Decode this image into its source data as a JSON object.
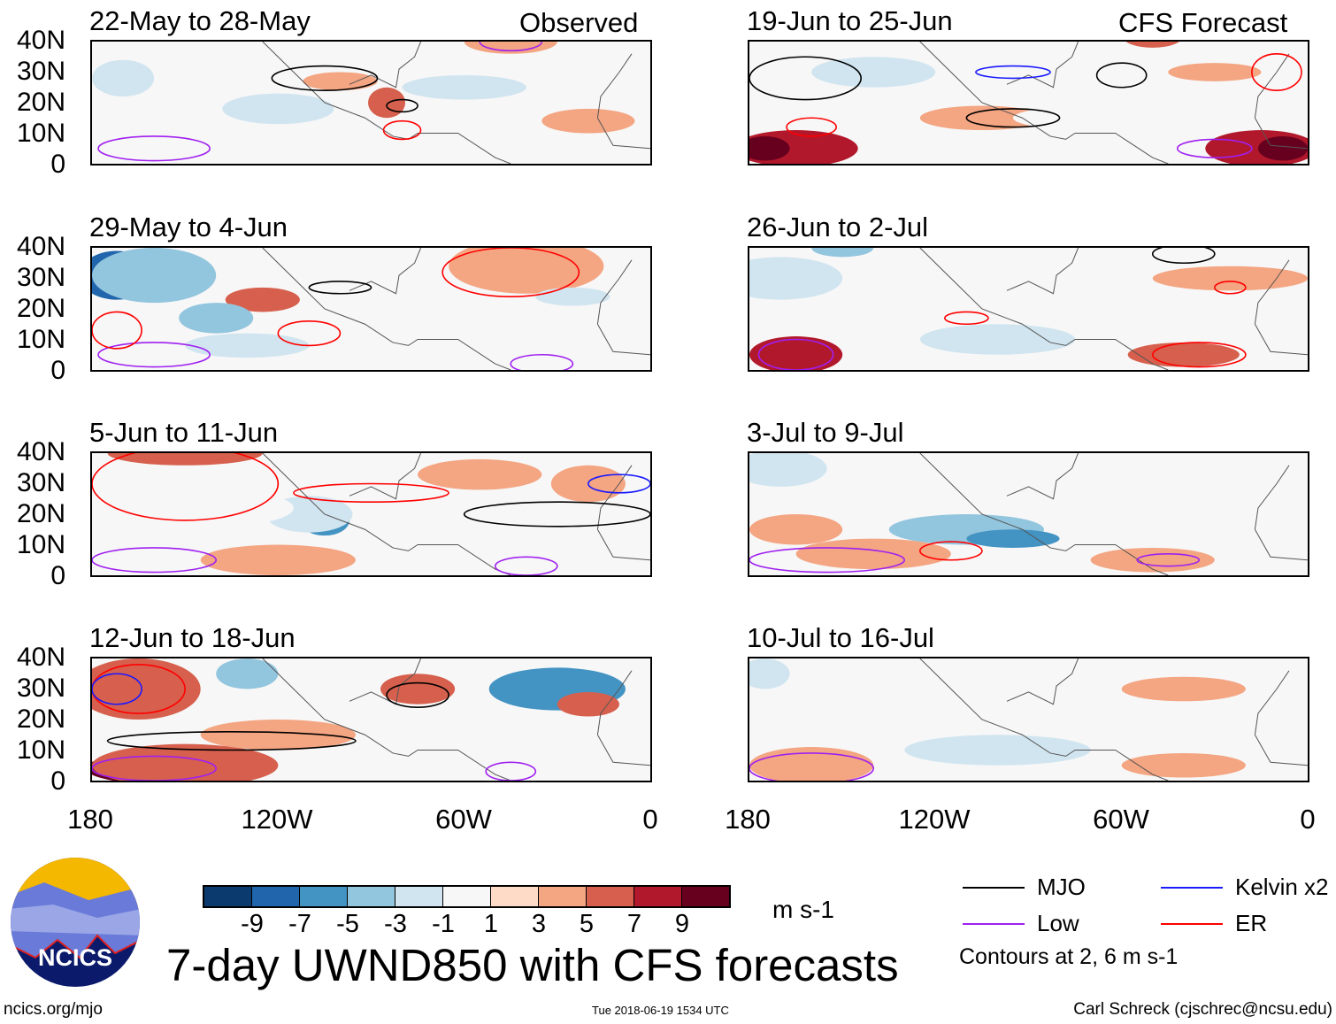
{
  "headers": {
    "observed": "Observed",
    "forecast": "CFS Forecast"
  },
  "panels": [
    {
      "title": "22-May to 28-May",
      "side": "left",
      "row": 0,
      "blobs": [
        [
          -170,
          28,
          10,
          6,
          -3
        ],
        [
          -120,
          18,
          18,
          5,
          -3
        ],
        [
          -85,
          20,
          6,
          5,
          5
        ],
        [
          -100,
          27,
          12,
          3,
          3
        ],
        [
          -20,
          14,
          15,
          4,
          3
        ],
        [
          -60,
          25,
          20,
          4,
          -3
        ],
        [
          -45,
          40,
          15,
          4,
          3
        ],
        [
          -150,
          5,
          20,
          4,
          -1
        ]
      ],
      "contours": [
        [
          -105,
          28,
          17,
          4,
          "mjo"
        ],
        [
          -80,
          19,
          5,
          2,
          "mjo"
        ],
        [
          -80,
          11,
          6,
          3,
          "er"
        ],
        [
          -160,
          5,
          18,
          4,
          "low"
        ],
        [
          -45,
          40,
          10,
          3,
          "low"
        ]
      ]
    },
    {
      "title": "29-May to 4-Jun",
      "side": "left",
      "row": 1,
      "blobs": [
        [
          -172,
          31,
          12,
          8,
          -9
        ],
        [
          -160,
          31,
          20,
          9,
          -5
        ],
        [
          -125,
          23,
          12,
          4,
          5
        ],
        [
          -140,
          17,
          12,
          5,
          -5
        ],
        [
          -45,
          35,
          15,
          6,
          7
        ],
        [
          -40,
          34,
          25,
          9,
          3
        ],
        [
          -130,
          8,
          20,
          4,
          -3
        ],
        [
          -25,
          24,
          12,
          3,
          -3
        ]
      ],
      "contours": [
        [
          -45,
          32,
          22,
          8,
          "er"
        ],
        [
          -100,
          27,
          10,
          2,
          "mjo"
        ],
        [
          -110,
          12,
          10,
          4,
          "er"
        ],
        [
          -160,
          5,
          18,
          4,
          "low"
        ],
        [
          -35,
          2,
          10,
          3,
          "low"
        ],
        [
          -172,
          13,
          8,
          6,
          "er"
        ]
      ]
    },
    {
      "title": "5-Jun to 11-Jun",
      "side": "left",
      "row": 2,
      "blobs": [
        [
          -150,
          40,
          25,
          4,
          5
        ],
        [
          -105,
          18,
          8,
          5,
          -7
        ],
        [
          -110,
          20,
          14,
          6,
          -3
        ],
        [
          -120,
          5,
          25,
          5,
          3
        ],
        [
          -55,
          33,
          20,
          5,
          3
        ],
        [
          -20,
          30,
          12,
          6,
          3
        ],
        [
          -140,
          22,
          25,
          6,
          -1
        ]
      ],
      "contours": [
        [
          -150,
          30,
          30,
          12,
          "er"
        ],
        [
          -90,
          27,
          25,
          3,
          "er"
        ],
        [
          -30,
          20,
          30,
          4,
          "mjo"
        ],
        [
          -10,
          30,
          10,
          3,
          "kelvin"
        ],
        [
          -160,
          5,
          20,
          4,
          "low"
        ],
        [
          -40,
          3,
          10,
          3,
          "low"
        ]
      ]
    },
    {
      "title": "12-Jun to 18-Jun",
      "side": "left",
      "row": 3,
      "blobs": [
        [
          -172,
          30,
          10,
          7,
          9
        ],
        [
          -165,
          30,
          20,
          10,
          5
        ],
        [
          -160,
          4,
          22,
          5,
          9
        ],
        [
          -150,
          5,
          30,
          7,
          5
        ],
        [
          -30,
          30,
          22,
          7,
          -7
        ],
        [
          -130,
          35,
          10,
          5,
          -5
        ],
        [
          -75,
          30,
          12,
          5,
          5
        ],
        [
          -120,
          15,
          25,
          5,
          3
        ],
        [
          -20,
          25,
          10,
          4,
          5
        ]
      ],
      "contours": [
        [
          -165,
          30,
          15,
          8,
          "er"
        ],
        [
          -172,
          30,
          8,
          5,
          "kelvin"
        ],
        [
          -135,
          13,
          40,
          3,
          "mjo"
        ],
        [
          -75,
          28,
          10,
          4,
          "mjo"
        ],
        [
          -160,
          4,
          20,
          4,
          "low"
        ],
        [
          -45,
          3,
          8,
          3,
          "low"
        ]
      ]
    },
    {
      "title": "19-Jun to 25-Jun",
      "side": "right",
      "row": 0,
      "blobs": [
        [
          -165,
          5,
          20,
          6,
          7
        ],
        [
          -175,
          5,
          8,
          4,
          9
        ],
        [
          -15,
          5,
          18,
          6,
          7
        ],
        [
          -8,
          5,
          8,
          4,
          9
        ],
        [
          -105,
          15,
          20,
          4,
          3
        ],
        [
          -140,
          30,
          20,
          5,
          -3
        ],
        [
          -30,
          30,
          15,
          3,
          3
        ],
        [
          -70,
          15,
          25,
          4,
          -1
        ],
        [
          -95,
          35,
          12,
          5,
          -1
        ],
        [
          -50,
          42,
          10,
          4,
          5
        ]
      ],
      "contours": [
        [
          -162,
          28,
          18,
          7,
          "mjo"
        ],
        [
          -60,
          29,
          8,
          4,
          "mjo"
        ],
        [
          -95,
          15,
          15,
          3,
          "mjo"
        ],
        [
          -95,
          30,
          12,
          2,
          "kelvin"
        ],
        [
          -160,
          12,
          8,
          3,
          "er"
        ],
        [
          -30,
          5,
          12,
          3,
          "low"
        ],
        [
          -10,
          30,
          8,
          6,
          "er"
        ]
      ]
    },
    {
      "title": "26-Jun to 2-Jul",
      "side": "right",
      "row": 1,
      "blobs": [
        [
          -165,
          5,
          15,
          6,
          7
        ],
        [
          -170,
          30,
          20,
          7,
          -3
        ],
        [
          -100,
          10,
          25,
          5,
          -3
        ],
        [
          -40,
          5,
          18,
          4,
          5
        ],
        [
          -25,
          30,
          25,
          4,
          3
        ],
        [
          -60,
          20,
          30,
          4,
          -1
        ],
        [
          -150,
          40,
          10,
          3,
          -5
        ]
      ],
      "contours": [
        [
          -165,
          5,
          12,
          5,
          "low"
        ],
        [
          -35,
          5,
          15,
          4,
          "er"
        ],
        [
          -40,
          38,
          10,
          3,
          "mjo"
        ],
        [
          -110,
          17,
          7,
          2,
          "er"
        ],
        [
          -25,
          27,
          5,
          2,
          "er"
        ]
      ]
    },
    {
      "title": "3-Jul to 9-Jul",
      "side": "right",
      "row": 2,
      "blobs": [
        [
          -110,
          15,
          25,
          5,
          -5
        ],
        [
          -95,
          12,
          15,
          3,
          -7
        ],
        [
          -165,
          15,
          15,
          5,
          3
        ],
        [
          -170,
          35,
          15,
          6,
          -3
        ],
        [
          -140,
          7,
          25,
          5,
          3
        ],
        [
          -50,
          5,
          20,
          4,
          3
        ],
        [
          -65,
          25,
          25,
          5,
          -1
        ]
      ],
      "contours": [
        [
          -155,
          5,
          25,
          4,
          "low"
        ],
        [
          -115,
          8,
          10,
          3,
          "er"
        ],
        [
          -45,
          5,
          10,
          2,
          "low"
        ]
      ]
    },
    {
      "title": "10-Jul to 16-Jul",
      "side": "right",
      "row": 3,
      "blobs": [
        [
          -160,
          5,
          20,
          6,
          3
        ],
        [
          -100,
          10,
          30,
          5,
          -3
        ],
        [
          -40,
          5,
          20,
          4,
          3
        ],
        [
          -175,
          35,
          8,
          5,
          -3
        ],
        [
          -40,
          30,
          20,
          4,
          3
        ],
        [
          -70,
          18,
          25,
          4,
          -1
        ]
      ],
      "contours": [
        [
          -160,
          4,
          20,
          5,
          "low"
        ]
      ]
    }
  ],
  "lat_labels": [
    "40N",
    "30N",
    "20N",
    "10N",
    "0"
  ],
  "lon_labels": [
    "180",
    "120W",
    "60W",
    "0"
  ],
  "colorbar": {
    "colors": [
      "#0b3a6e",
      "#2166ac",
      "#4393c3",
      "#92c5de",
      "#d1e5f0",
      "#f7f7f7",
      "#fddbc7",
      "#f4a582",
      "#d6604d",
      "#b2182b",
      "#67001f"
    ],
    "ticks": [
      "-9",
      "-7",
      "-5",
      "-3",
      "-1",
      "1",
      "3",
      "5",
      "7",
      "9"
    ],
    "units": "m s-1"
  },
  "legend": [
    {
      "label": "MJO",
      "key": "mjo",
      "color": "#000000"
    },
    {
      "label": "Kelvin x2",
      "key": "kelvin",
      "color": "#1a1aff"
    },
    {
      "label": "Low",
      "key": "low",
      "color": "#a020f0"
    },
    {
      "label": "ER",
      "key": "er",
      "color": "#ff0000"
    }
  ],
  "contours_note": "Contours at 2, 6 m s-1",
  "main_title": "7-day UWND850 with CFS forecasts",
  "logo_text": "NCICS",
  "footer": {
    "url": "ncics.org/mjo",
    "timestamp": "Tue 2018-06-19 1534 UTC",
    "credit": "Carl Schreck (cjschrec@ncsu.edu)"
  }
}
